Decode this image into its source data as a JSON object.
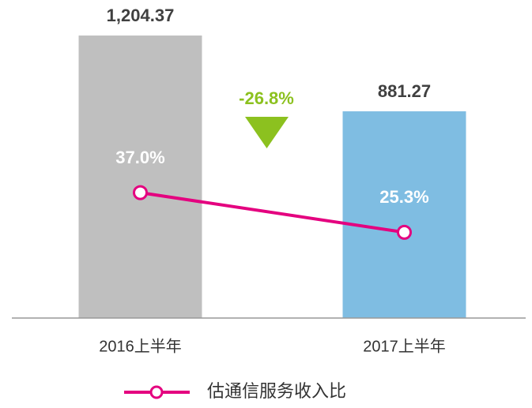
{
  "chart_data": {
    "type": "bar",
    "categories": [
      "2016上半年",
      "2017上半年"
    ],
    "series": [
      {
        "colors": [
          "#bfbfbf",
          "#7fbde2"
        ],
        "values": [
          1204.37,
          881.27
        ],
        "value_labels": [
          "1,204.37",
          "881.27"
        ]
      },
      {
        "name": "估通信服务收入比",
        "type": "line",
        "axis": "y2",
        "color": "#e4007f",
        "values": [
          37.0,
          25.3
        ],
        "value_labels": [
          "37.0%",
          "25.3%"
        ]
      }
    ],
    "annotations": [
      {
        "text": "-26.8%",
        "color": "#8cc11f"
      }
    ],
    "ylim": [
      0,
      1300
    ],
    "y2lim": [
      0,
      90
    ],
    "legend": "bottom"
  }
}
